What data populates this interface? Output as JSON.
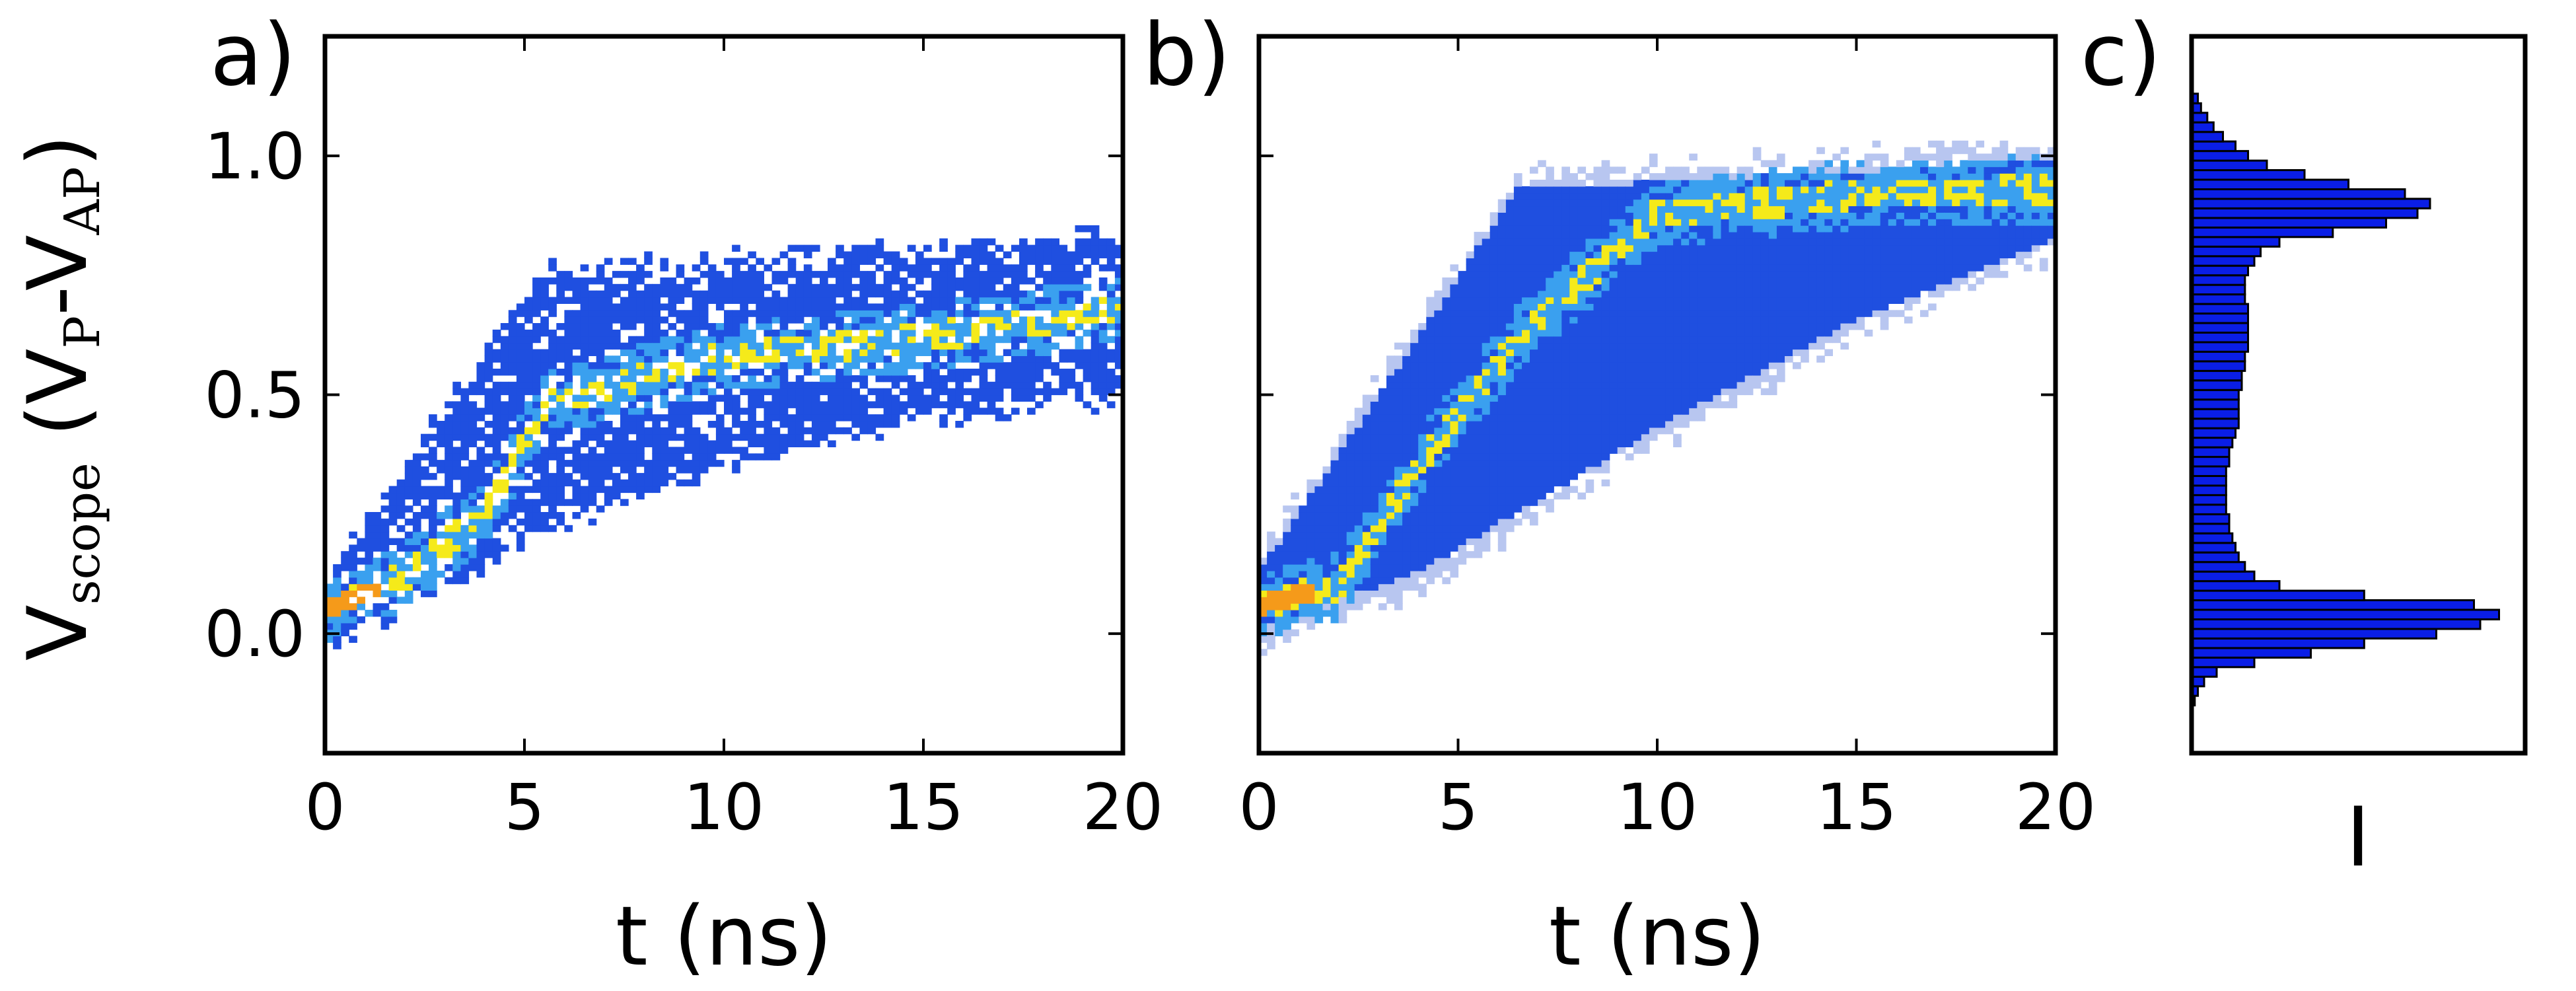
{
  "chart_data": [
    {
      "panel": "a)",
      "type": "heatmap",
      "description_of_density": "2D histogram of scope voltage vs time, single trace set",
      "xlabel": "t (ns)",
      "ylabel": {
        "main": "V",
        "sub": "scope",
        "paren_open": " (V",
        "sub2": "P",
        "dash": "-V",
        "sub3": "AP",
        "paren_close": ")"
      },
      "xlim": [
        0,
        20
      ],
      "ylim": [
        -0.25,
        1.25
      ],
      "xticks": [
        "0",
        "5",
        "10",
        "15",
        "20"
      ],
      "yticks": [
        "0.0",
        "0.5",
        "1.0"
      ],
      "xtick_values": [
        0,
        5,
        10,
        15,
        20
      ],
      "ytick_values": [
        0.0,
        0.5,
        1.0
      ],
      "ridge": [
        [
          0,
          0.05
        ],
        [
          2,
          0.12
        ],
        [
          4,
          0.25
        ],
        [
          5.5,
          0.48
        ],
        [
          10,
          0.58
        ],
        [
          15,
          0.62
        ],
        [
          20,
          0.68
        ]
      ],
      "upper_edge": [
        [
          0,
          0.12
        ],
        [
          5.5,
          0.76
        ],
        [
          10,
          0.78
        ],
        [
          20,
          0.83
        ]
      ],
      "lower_edge": [
        [
          0,
          -0.04
        ],
        [
          5,
          0.2
        ],
        [
          10,
          0.35
        ],
        [
          15,
          0.45
        ],
        [
          20,
          0.5
        ]
      ]
    },
    {
      "panel": "b)",
      "type": "heatmap",
      "xlabel": "t (ns)",
      "xlim": [
        0,
        20
      ],
      "ylim": [
        -0.25,
        1.25
      ],
      "xticks": [
        "0",
        "5",
        "10",
        "15",
        "20"
      ],
      "xtick_values": [
        0,
        5,
        10,
        15,
        20
      ],
      "ytick_values": [
        0.0,
        0.5,
        1.0
      ],
      "ridge": [
        [
          0,
          0.06
        ],
        [
          2,
          0.1
        ],
        [
          4,
          0.35
        ],
        [
          6.5,
          0.62
        ],
        [
          10,
          0.88
        ],
        [
          15,
          0.92
        ],
        [
          20,
          0.93
        ]
      ],
      "upper_edge": [
        [
          0,
          0.16
        ],
        [
          6.5,
          0.96
        ],
        [
          20,
          1.02
        ]
      ],
      "lower_edge": [
        [
          0,
          -0.02
        ],
        [
          4,
          0.1
        ],
        [
          10,
          0.4
        ],
        [
          15,
          0.63
        ],
        [
          20,
          0.8
        ]
      ]
    },
    {
      "panel": "c)",
      "type": "bar",
      "orientation": "horizontal",
      "xlabel": "I",
      "ylim": [
        -0.25,
        1.25
      ],
      "bins": [
        {
          "v": -0.14,
          "c": 0.01
        },
        {
          "v": -0.12,
          "c": 0.02
        },
        {
          "v": -0.1,
          "c": 0.04
        },
        {
          "v": -0.08,
          "c": 0.08
        },
        {
          "v": -0.06,
          "c": 0.2
        },
        {
          "v": -0.04,
          "c": 0.38
        },
        {
          "v": -0.02,
          "c": 0.55
        },
        {
          "v": 0.0,
          "c": 0.78
        },
        {
          "v": 0.02,
          "c": 0.92
        },
        {
          "v": 0.04,
          "c": 0.98
        },
        {
          "v": 0.06,
          "c": 0.9
        },
        {
          "v": 0.08,
          "c": 0.55
        },
        {
          "v": 0.1,
          "c": 0.28
        },
        {
          "v": 0.12,
          "c": 0.2
        },
        {
          "v": 0.14,
          "c": 0.17
        },
        {
          "v": 0.16,
          "c": 0.15
        },
        {
          "v": 0.18,
          "c": 0.14
        },
        {
          "v": 0.2,
          "c": 0.13
        },
        {
          "v": 0.22,
          "c": 0.12
        },
        {
          "v": 0.24,
          "c": 0.12
        },
        {
          "v": 0.26,
          "c": 0.11
        },
        {
          "v": 0.28,
          "c": 0.11
        },
        {
          "v": 0.3,
          "c": 0.11
        },
        {
          "v": 0.32,
          "c": 0.11
        },
        {
          "v": 0.34,
          "c": 0.11
        },
        {
          "v": 0.36,
          "c": 0.12
        },
        {
          "v": 0.38,
          "c": 0.12
        },
        {
          "v": 0.4,
          "c": 0.13
        },
        {
          "v": 0.42,
          "c": 0.14
        },
        {
          "v": 0.44,
          "c": 0.15
        },
        {
          "v": 0.46,
          "c": 0.15
        },
        {
          "v": 0.48,
          "c": 0.15
        },
        {
          "v": 0.5,
          "c": 0.15
        },
        {
          "v": 0.52,
          "c": 0.16
        },
        {
          "v": 0.54,
          "c": 0.16
        },
        {
          "v": 0.56,
          "c": 0.17
        },
        {
          "v": 0.58,
          "c": 0.17
        },
        {
          "v": 0.6,
          "c": 0.18
        },
        {
          "v": 0.62,
          "c": 0.18
        },
        {
          "v": 0.64,
          "c": 0.18
        },
        {
          "v": 0.66,
          "c": 0.18
        },
        {
          "v": 0.68,
          "c": 0.18
        },
        {
          "v": 0.7,
          "c": 0.17
        },
        {
          "v": 0.72,
          "c": 0.17
        },
        {
          "v": 0.74,
          "c": 0.17
        },
        {
          "v": 0.76,
          "c": 0.18
        },
        {
          "v": 0.78,
          "c": 0.2
        },
        {
          "v": 0.8,
          "c": 0.22
        },
        {
          "v": 0.82,
          "c": 0.28
        },
        {
          "v": 0.84,
          "c": 0.45
        },
        {
          "v": 0.86,
          "c": 0.62
        },
        {
          "v": 0.88,
          "c": 0.72
        },
        {
          "v": 0.9,
          "c": 0.76
        },
        {
          "v": 0.92,
          "c": 0.68
        },
        {
          "v": 0.94,
          "c": 0.5
        },
        {
          "v": 0.96,
          "c": 0.36
        },
        {
          "v": 0.98,
          "c": 0.24
        },
        {
          "v": 1.0,
          "c": 0.18
        },
        {
          "v": 1.02,
          "c": 0.14
        },
        {
          "v": 1.04,
          "c": 0.1
        },
        {
          "v": 1.06,
          "c": 0.07
        },
        {
          "v": 1.08,
          "c": 0.05
        },
        {
          "v": 1.1,
          "c": 0.03
        },
        {
          "v": 1.12,
          "c": 0.02
        }
      ],
      "bar_color": "#0a1ee6"
    }
  ],
  "colors": {
    "low": "#b8c6f0",
    "base": "#1f4fe0",
    "mid": "#3aa0ef",
    "high": "#f5ea1a",
    "peak": "#f59a1a"
  }
}
